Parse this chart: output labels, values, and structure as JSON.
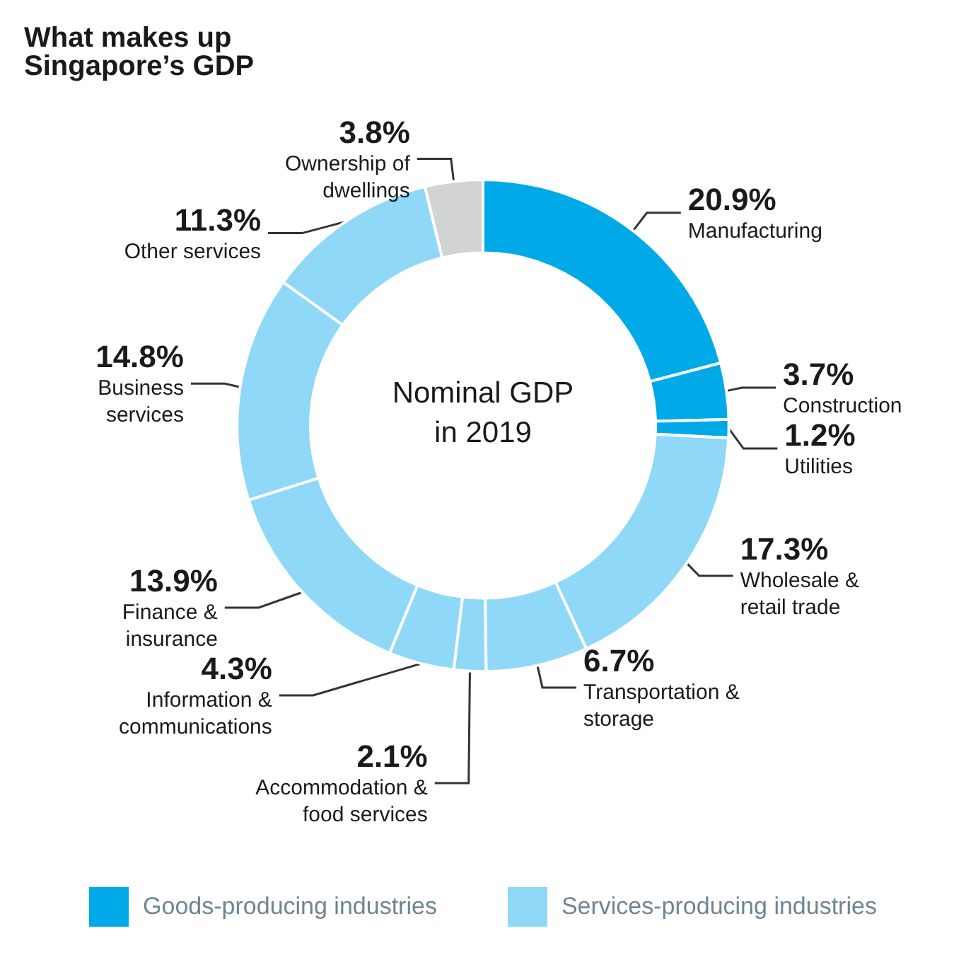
{
  "chart_data": {
    "type": "donut",
    "title": "What makes up Singapore’s GDP",
    "categories": [
      "Manufacturing",
      "Construction",
      "Utilities",
      "Wholesale & retail trade",
      "Transportation & storage",
      "Accommodation & food services",
      "Information & communications",
      "Finance & insurance",
      "Business services",
      "Other services",
      "Ownership of dwellings"
    ],
    "values": [
      20.9,
      3.7,
      1.2,
      17.3,
      6.7,
      2.1,
      4.3,
      13.9,
      14.8,
      11.3,
      3.8
    ],
    "value_labels": [
      "20.9%",
      "3.7%",
      "1.2%",
      "17.3%",
      "6.7%",
      "2.1%",
      "4.3%",
      "13.9%",
      "14.8%",
      "11.3%",
      "3.8%"
    ],
    "colors": [
      "#00aae9",
      "#00aae9",
      "#00aae9",
      "#8fd8f7",
      "#8fd8f7",
      "#8fd8f7",
      "#8fd8f7",
      "#8fd8f7",
      "#8fd8f7",
      "#8fd8f7",
      "#d1d3d4"
    ],
    "annotations": [
      "Nominal GDP\nin 2019",
      "Goods-producing industries",
      "Services-producing industries"
    ]
  }
}
